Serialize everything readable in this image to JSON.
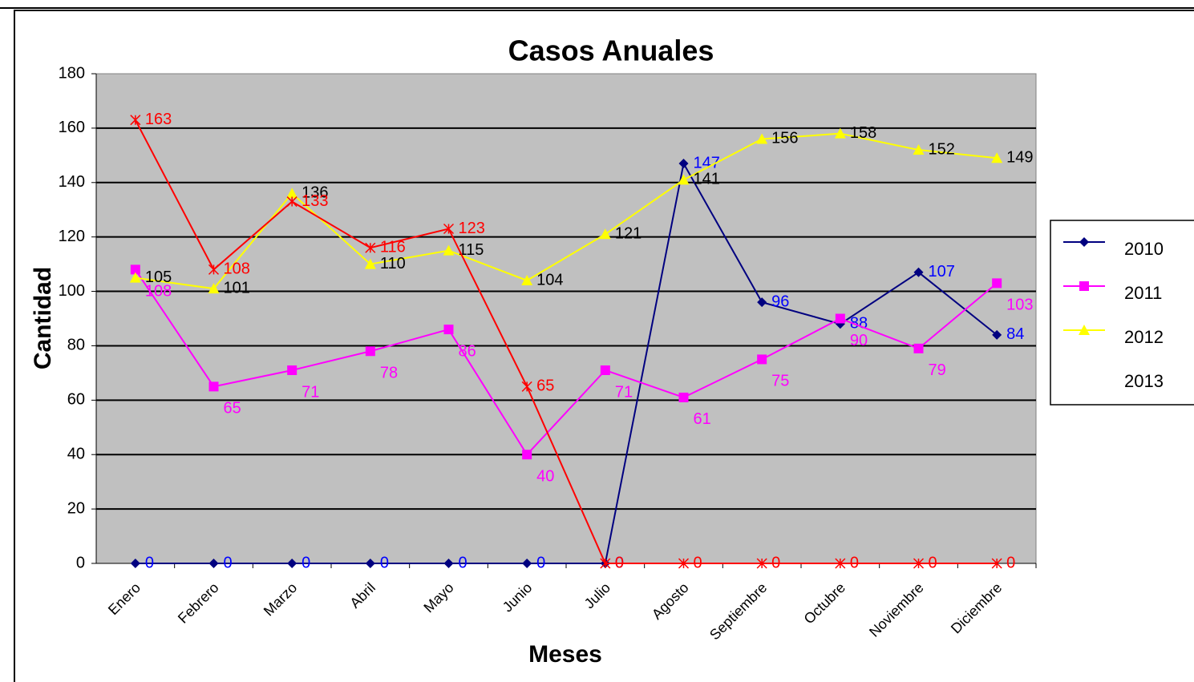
{
  "chart_data": {
    "type": "line",
    "title": "Casos Anuales",
    "x_label": "Meses",
    "y_label": "Cantidad",
    "categories": [
      "Enero",
      "Febrero",
      "Marzo",
      "Abril",
      "Mayo",
      "Junio",
      "Julio",
      "Agosto",
      "Septiembre",
      "Octubre",
      "Noviembre",
      "Diciembre"
    ],
    "series": [
      {
        "name": "2010",
        "color": "#000080",
        "marker": "diamond",
        "values": [
          0,
          0,
          0,
          0,
          0,
          0,
          0,
          147,
          96,
          88,
          107,
          84
        ]
      },
      {
        "name": "2011",
        "color": "#ff00ff",
        "marker": "square",
        "values": [
          108,
          65,
          71,
          78,
          86,
          40,
          71,
          61,
          75,
          90,
          79,
          103
        ]
      },
      {
        "name": "2012",
        "color": "#ffff00",
        "marker": "triangle",
        "values": [
          105,
          101,
          136,
          110,
          115,
          104,
          121,
          141,
          156,
          158,
          152,
          149
        ]
      },
      {
        "name": "2013",
        "color": "#ff0000",
        "marker": "star",
        "values": [
          163,
          108,
          133,
          116,
          123,
          65,
          0,
          0,
          0,
          0,
          0,
          0
        ]
      }
    ],
    "ylim": [
      0,
      180
    ],
    "yticks": [
      0,
      20,
      40,
      60,
      80,
      100,
      120,
      140,
      160,
      180
    ],
    "grid": true
  }
}
